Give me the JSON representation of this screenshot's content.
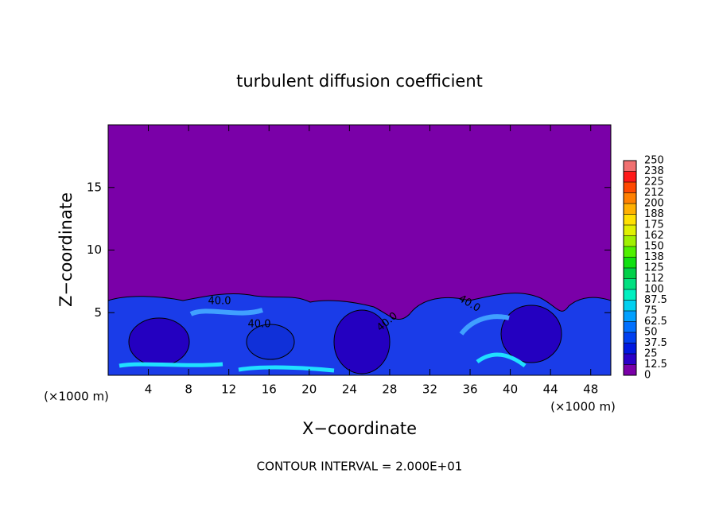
{
  "chart_data": {
    "type": "contour",
    "title": "turbulent diffusion coefficient",
    "xlabel": "X−coordinate",
    "ylabel": "Z−coordinate",
    "x_unit": "(×1000 m)",
    "footer": "CONTOUR INTERVAL = 2.000E+01",
    "contour_labels": [
      "40.0",
      "40.0",
      "40.0",
      "40.0"
    ],
    "xlim": [
      0,
      50
    ],
    "xticks": [
      4,
      8,
      12,
      16,
      20,
      24,
      28,
      32,
      36,
      40,
      44,
      48
    ],
    "ylim": [
      0,
      20
    ],
    "yticks": [
      5,
      10,
      15
    ],
    "levels": [
      0,
      12.5,
      25,
      37.5,
      50,
      62.5,
      75,
      87.5,
      100,
      {
        "value": 112.5,
        "label": "112"
      },
      125,
      {
        "value": 137.5,
        "label": "138"
      },
      150,
      {
        "value": 162.5,
        "label": "162"
      },
      175,
      {
        "value": 187.5,
        "label": "188"
      },
      200,
      {
        "value": 212.5,
        "label": "212"
      },
      225,
      {
        "value": 237.5,
        "label": "238"
      },
      250
    ],
    "colors": [
      "#7a00a8",
      "#2a00c8",
      "#0018e0",
      "#0040f0",
      "#0070ff",
      "#00a0ff",
      "#00d0f0",
      "#00f0c0",
      "#00e080",
      "#00d048",
      "#10e010",
      "#50f000",
      "#a0f000",
      "#e0f000",
      "#ffe000",
      "#ffb000",
      "#ff8000",
      "#ff4800",
      "#ff1818",
      "#f07070"
    ]
  }
}
